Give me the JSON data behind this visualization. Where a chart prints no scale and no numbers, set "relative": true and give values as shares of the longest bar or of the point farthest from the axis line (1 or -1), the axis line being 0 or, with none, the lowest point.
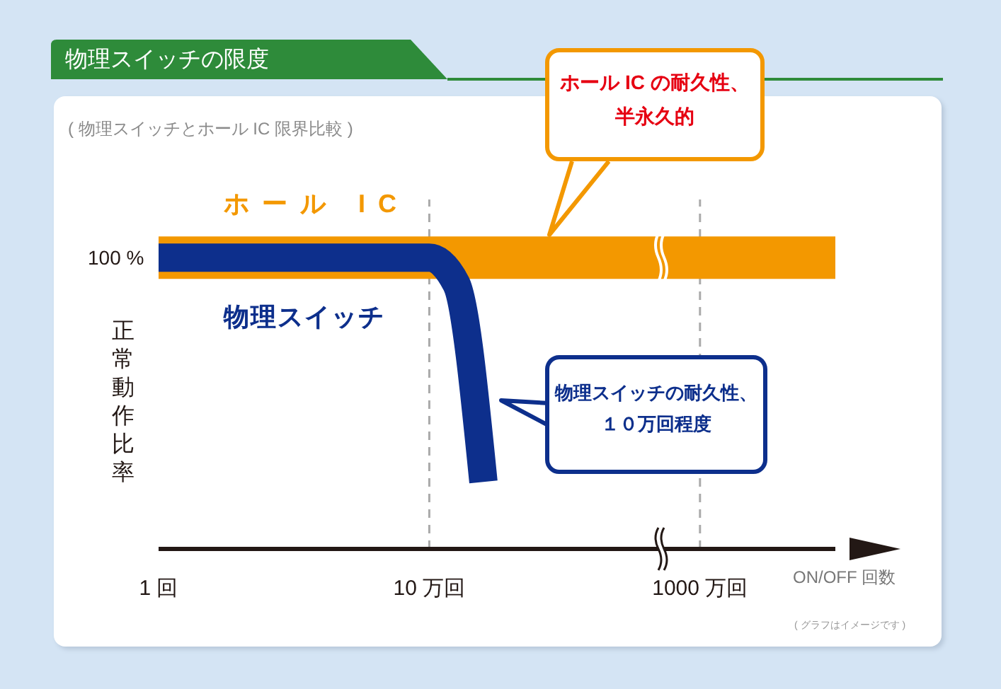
{
  "chart_data": {
    "type": "line",
    "title": "物理スイッチの限度",
    "subtitle": "( 物理スイッチとホール IC 限界比較 )",
    "xlabel": "ON/OFF 回数",
    "ylabel": "正常動作比率",
    "relative": true,
    "categories": [
      "1 回",
      null,
      null,
      null,
      null,
      null,
      null,
      null,
      null,
      null,
      "10 万回",
      null,
      null,
      null,
      null,
      null,
      null,
      null,
      null,
      null,
      "1000 万回",
      null,
      null,
      null,
      null,
      null
    ],
    "series": [
      {
        "name": "ホール IC",
        "color": "#f39800",
        "values": [
          1,
          1,
          1,
          1,
          1,
          1,
          1,
          1,
          1,
          1,
          1,
          1,
          1,
          1,
          1,
          1,
          1,
          1,
          1,
          1,
          1,
          1,
          1,
          1,
          1,
          1
        ]
      },
      {
        "name": "物理スイッチ",
        "color": "#0d2f8c",
        "values": [
          1,
          1,
          1,
          1,
          1,
          1,
          1,
          1,
          1,
          1,
          1,
          0.91,
          0.23,
          null,
          null,
          null,
          null,
          null,
          null,
          null,
          null,
          null,
          null,
          null,
          null,
          null
        ]
      }
    ],
    "ref_lines": [
      {
        "axis": "x",
        "value": "10 万回",
        "color": "#aaaaaa",
        "line_style": "dashed"
      },
      {
        "axis": "x",
        "value": "1000 万回",
        "color": "#aaaaaa",
        "line_style": "dashed"
      }
    ],
    "annotations": [
      "ホール IC の耐久性、半永久的",
      "物理スイッチの耐久性、１０万回程度",
      "100 %",
      "( グラフはイメージです )"
    ],
    "marker": "none",
    "line_style": "solid"
  }
}
